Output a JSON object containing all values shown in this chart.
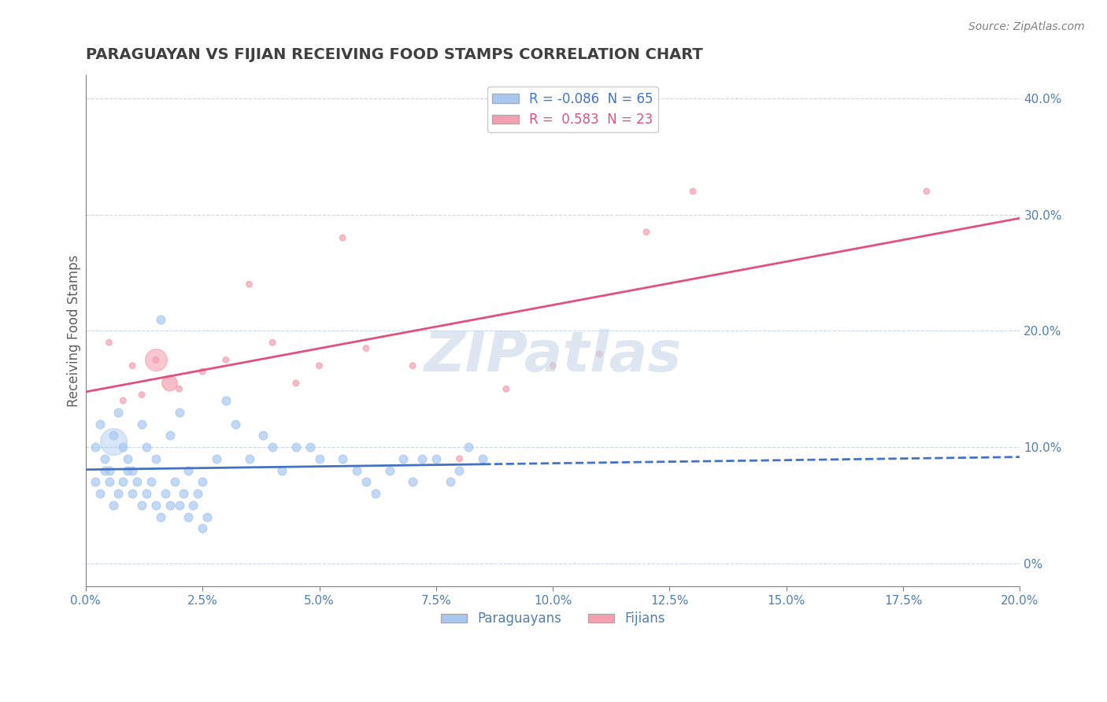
{
  "title": "PARAGUAYAN VS FIJIAN RECEIVING FOOD STAMPS CORRELATION CHART",
  "source": "Source: ZipAtlas.com",
  "ylabel": "Receiving Food Stamps",
  "right_yticks": [
    "0%",
    "10.0%",
    "20.0%",
    "30.0%",
    "40.0%"
  ],
  "right_ytick_vals": [
    0,
    0.1,
    0.2,
    0.3,
    0.4
  ],
  "xmin": 0.0,
  "xmax": 0.2,
  "ymin": -0.02,
  "ymax": 0.42,
  "legend_R_paraguayan": "-0.086",
  "legend_N_paraguayan": "65",
  "legend_R_fijian": "0.583",
  "legend_N_fijian": "23",
  "paraguayan_color": "#a8c8f0",
  "fijian_color": "#f4a0b0",
  "paraguayan_line_color": "#4472c4",
  "fijian_line_color": "#e05080",
  "watermark": "ZIPatlas",
  "watermark_color": "#c8d8e8",
  "paraguayan_x": [
    0.002,
    0.003,
    0.004,
    0.005,
    0.006,
    0.007,
    0.008,
    0.009,
    0.01,
    0.012,
    0.013,
    0.015,
    0.016,
    0.018,
    0.02,
    0.022,
    0.025,
    0.028,
    0.03,
    0.032,
    0.035,
    0.038,
    0.04,
    0.042,
    0.045,
    0.048,
    0.05,
    0.055,
    0.058,
    0.06,
    0.062,
    0.065,
    0.068,
    0.07,
    0.072,
    0.075,
    0.078,
    0.08,
    0.082,
    0.085,
    0.002,
    0.003,
    0.004,
    0.005,
    0.006,
    0.007,
    0.008,
    0.009,
    0.01,
    0.011,
    0.012,
    0.013,
    0.014,
    0.015,
    0.016,
    0.017,
    0.018,
    0.019,
    0.02,
    0.021,
    0.022,
    0.023,
    0.024,
    0.025,
    0.026
  ],
  "paraguayan_y": [
    0.1,
    0.12,
    0.09,
    0.08,
    0.11,
    0.13,
    0.1,
    0.09,
    0.08,
    0.12,
    0.1,
    0.09,
    0.21,
    0.11,
    0.13,
    0.08,
    0.07,
    0.09,
    0.14,
    0.12,
    0.09,
    0.11,
    0.1,
    0.08,
    0.1,
    0.1,
    0.09,
    0.09,
    0.08,
    0.07,
    0.06,
    0.08,
    0.09,
    0.07,
    0.09,
    0.09,
    0.07,
    0.08,
    0.1,
    0.09,
    0.07,
    0.06,
    0.08,
    0.07,
    0.05,
    0.06,
    0.07,
    0.08,
    0.06,
    0.07,
    0.05,
    0.06,
    0.07,
    0.05,
    0.04,
    0.06,
    0.05,
    0.07,
    0.05,
    0.06,
    0.04,
    0.05,
    0.06,
    0.03,
    0.04
  ],
  "fijian_x": [
    0.005,
    0.008,
    0.01,
    0.012,
    0.015,
    0.018,
    0.02,
    0.025,
    0.03,
    0.035,
    0.04,
    0.045,
    0.05,
    0.055,
    0.06,
    0.07,
    0.08,
    0.09,
    0.1,
    0.11,
    0.12,
    0.13,
    0.18
  ],
  "fijian_y": [
    0.19,
    0.14,
    0.17,
    0.145,
    0.175,
    0.155,
    0.15,
    0.165,
    0.175,
    0.24,
    0.19,
    0.155,
    0.17,
    0.28,
    0.185,
    0.17,
    0.09,
    0.15,
    0.17,
    0.18,
    0.285,
    0.32,
    0.32
  ],
  "fijian_size": [
    30,
    30,
    30,
    30,
    30,
    200,
    30,
    30,
    30,
    30,
    30,
    30,
    30,
    30,
    30,
    30,
    30,
    30,
    30,
    30,
    30,
    30,
    30
  ]
}
